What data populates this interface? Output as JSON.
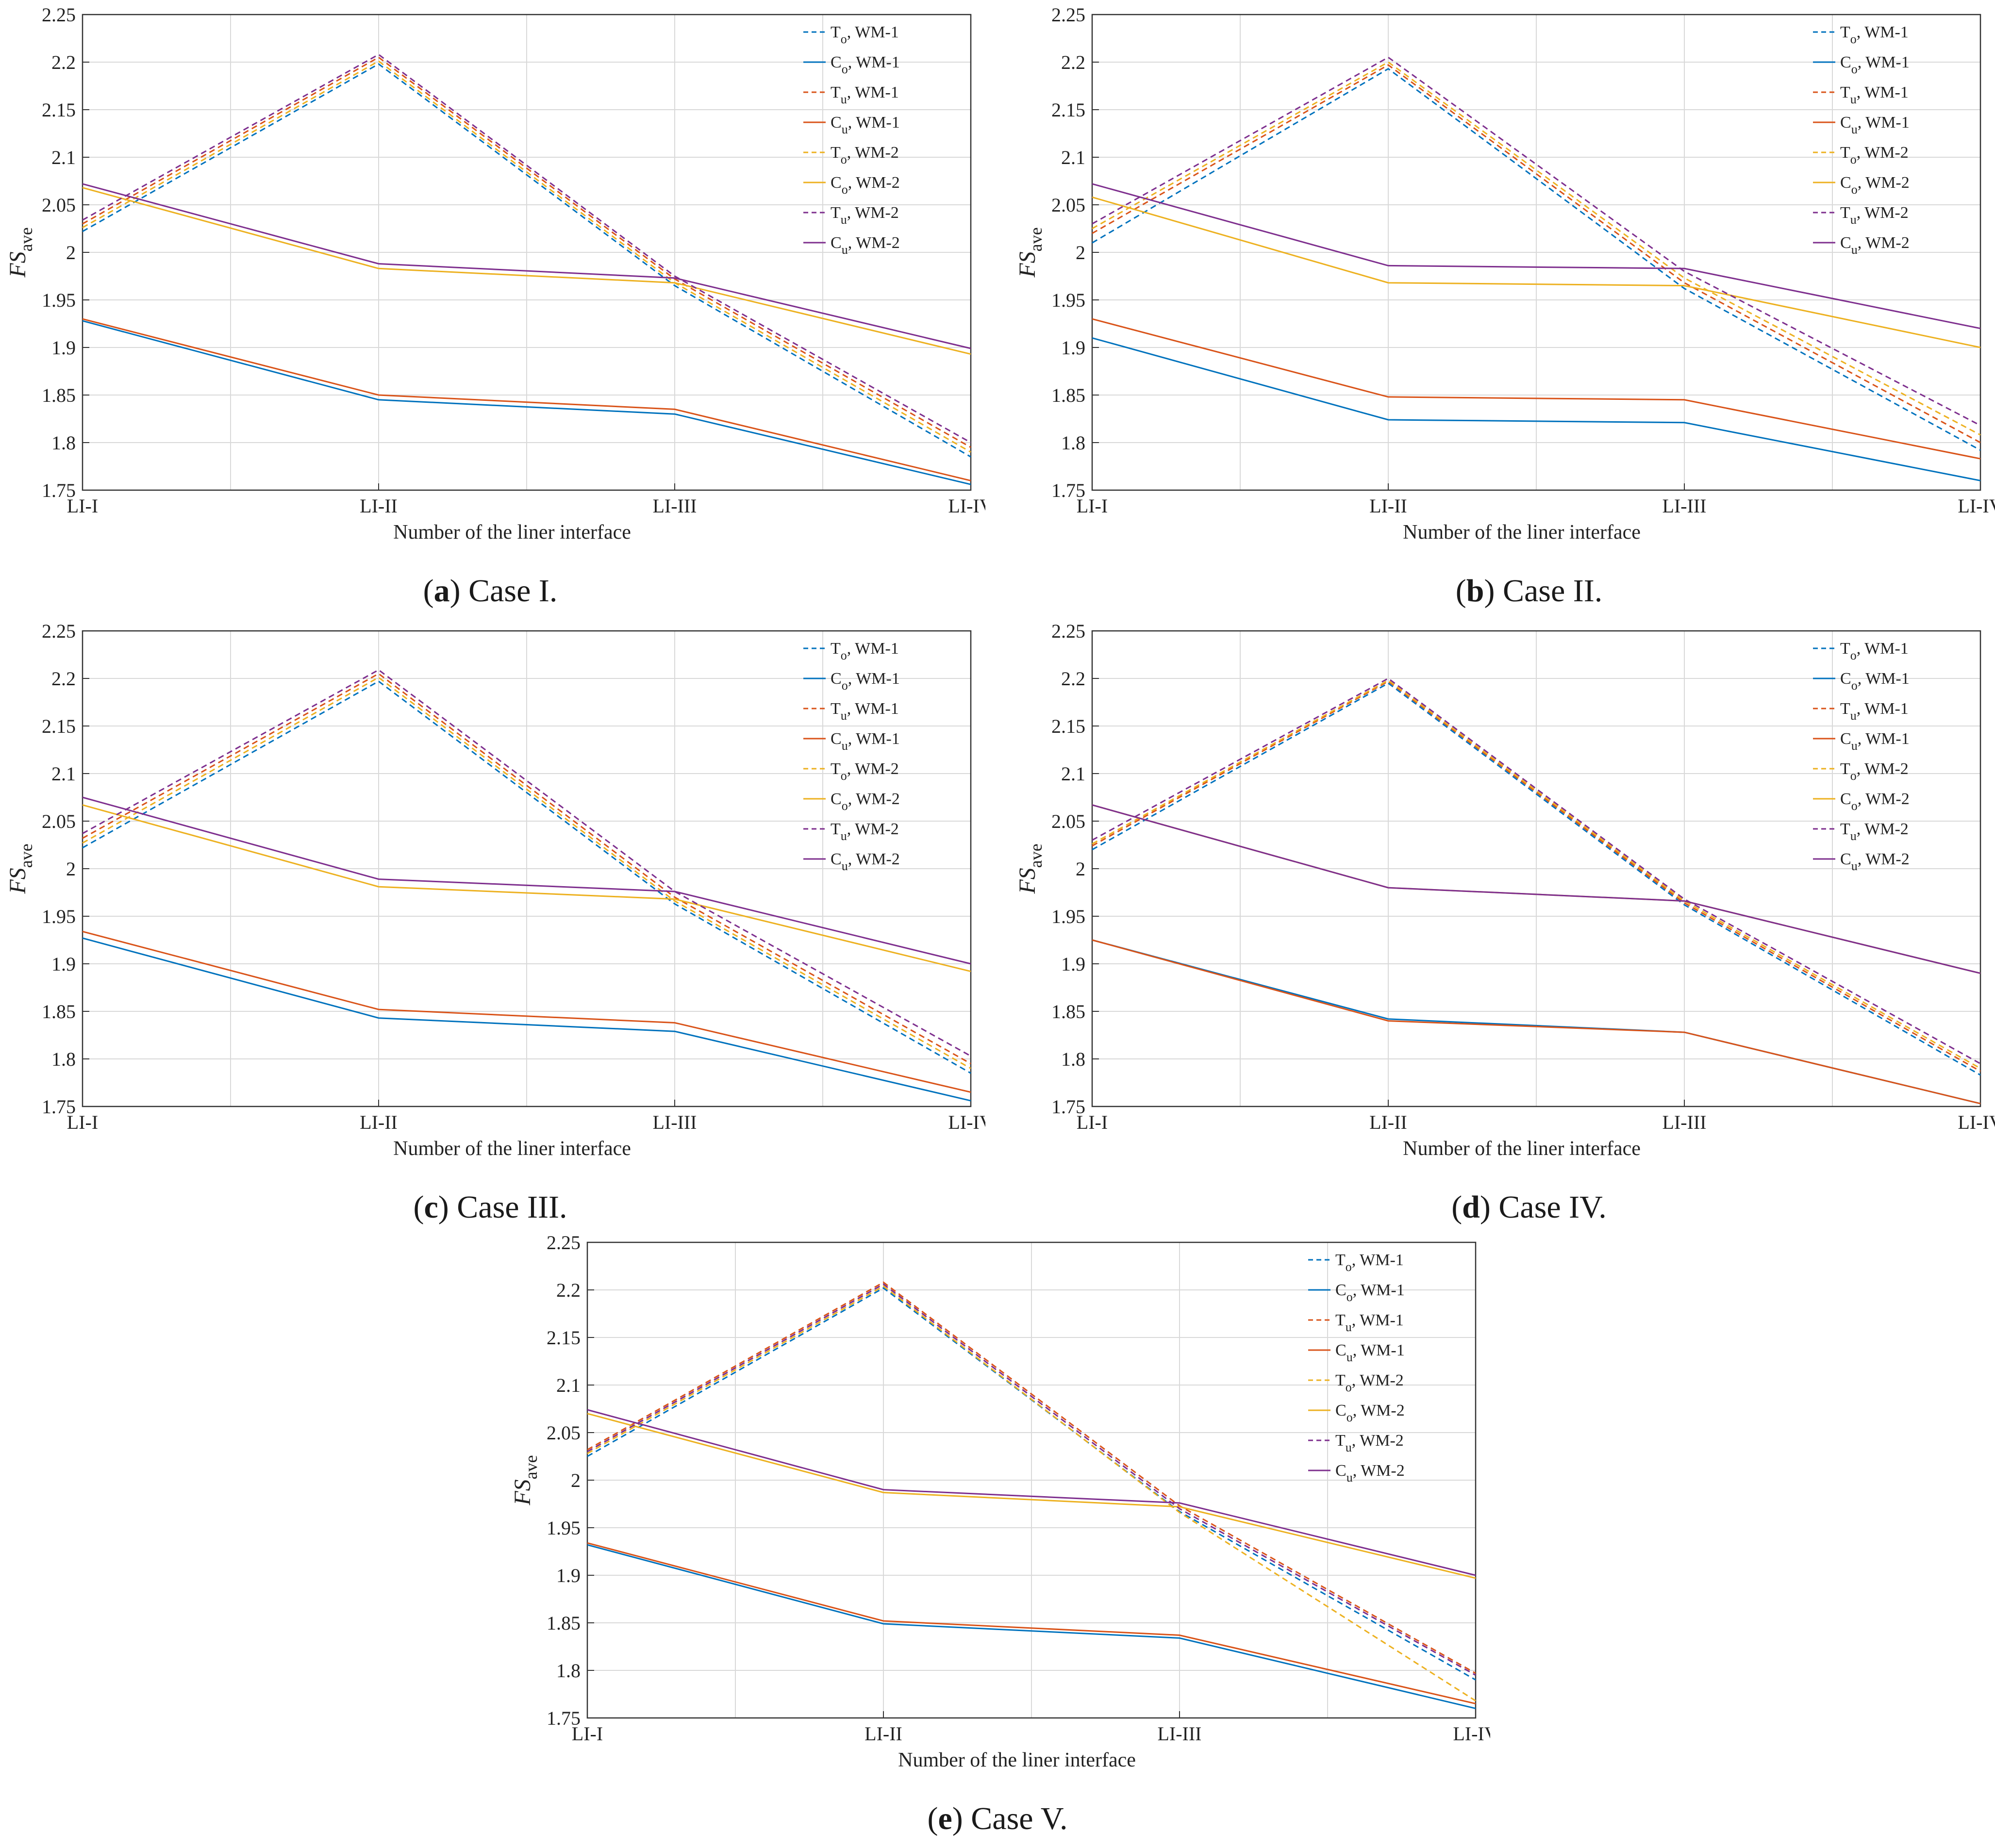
{
  "figure": {
    "captions": [
      {
        "letter": "a",
        "text": "Case I."
      },
      {
        "letter": "b",
        "text": "Case II."
      },
      {
        "letter": "c",
        "text": "Case III."
      },
      {
        "letter": "d",
        "text": "Case IV."
      },
      {
        "letter": "e",
        "text": "Case V."
      }
    ]
  },
  "colors": {
    "wm1_o": "#0072BD",
    "wm1_u": "#D95319",
    "wm2_o": "#EDB120",
    "wm2_u": "#7E2F8E",
    "grid": "#d9d9d9",
    "axis": "#333333"
  },
  "chart_data": [
    {
      "type": "line",
      "panel": "a",
      "title": "Case I.",
      "xlabel": "Number of the liner interface",
      "ylabel": "FSave",
      "ylabel_main": "FS",
      "ylabel_sub": "ave",
      "categories": [
        "LI-I",
        "LI-II",
        "LI-III",
        "LI-IV"
      ],
      "ylim": [
        1.75,
        2.25
      ],
      "yticks": [
        "1.75",
        "1.8",
        "1.85",
        "1.9",
        "1.95",
        "2",
        "2.05",
        "2.1",
        "2.15",
        "2.2",
        "2.25"
      ],
      "grid": true,
      "legend_position": "top-right",
      "series": [
        {
          "name": "To, WM-1",
          "label_main": "T",
          "label_sub": "o",
          "label_rest": ", WM-1",
          "color": "#0072BD",
          "dashed": true,
          "values": [
            2.022,
            2.198,
            1.965,
            1.785
          ]
        },
        {
          "name": "Co, WM-1",
          "label_main": "C",
          "label_sub": "o",
          "label_rest": ", WM-1",
          "color": "#0072BD",
          "dashed": false,
          "values": [
            1.928,
            1.845,
            1.83,
            1.756
          ]
        },
        {
          "name": "Tu, WM-1",
          "label_main": "T",
          "label_sub": "u",
          "label_rest": ", WM-1",
          "color": "#D95319",
          "dashed": true,
          "values": [
            2.03,
            2.205,
            1.972,
            1.795
          ]
        },
        {
          "name": "Cu, WM-1",
          "label_main": "C",
          "label_sub": "u",
          "label_rest": ", WM-1",
          "color": "#D95319",
          "dashed": false,
          "values": [
            1.93,
            1.85,
            1.835,
            1.76
          ]
        },
        {
          "name": "To, WM-2",
          "label_main": "T",
          "label_sub": "o",
          "label_rest": ", WM-2",
          "color": "#EDB120",
          "dashed": true,
          "values": [
            2.026,
            2.201,
            1.968,
            1.79
          ]
        },
        {
          "name": "Co, WM-2",
          "label_main": "C",
          "label_sub": "o",
          "label_rest": ", WM-2",
          "color": "#EDB120",
          "dashed": false,
          "values": [
            2.068,
            1.983,
            1.968,
            1.893
          ]
        },
        {
          "name": "Tu, WM-2",
          "label_main": "T",
          "label_sub": "u",
          "label_rest": ", WM-2",
          "color": "#7E2F8E",
          "dashed": true,
          "values": [
            2.034,
            2.208,
            1.975,
            1.8
          ]
        },
        {
          "name": "Cu, WM-2",
          "label_main": "C",
          "label_sub": "u",
          "label_rest": ", WM-2",
          "color": "#7E2F8E",
          "dashed": false,
          "values": [
            2.072,
            1.988,
            1.973,
            1.899
          ]
        }
      ]
    },
    {
      "type": "line",
      "panel": "b",
      "title": "Case II.",
      "xlabel": "Number of the liner interface",
      "ylabel": "FSave",
      "ylabel_main": "FS",
      "ylabel_sub": "ave",
      "categories": [
        "LI-I",
        "LI-II",
        "LI-III",
        "LI-IV"
      ],
      "ylim": [
        1.75,
        2.25
      ],
      "yticks": [
        "1.75",
        "1.8",
        "1.85",
        "1.9",
        "1.95",
        "2",
        "2.05",
        "2.1",
        "2.15",
        "2.2",
        "2.25"
      ],
      "grid": true,
      "legend_position": "top-right",
      "series": [
        {
          "name": "To, WM-1",
          "label_main": "T",
          "label_sub": "o",
          "label_rest": ", WM-1",
          "color": "#0072BD",
          "dashed": true,
          "values": [
            2.01,
            2.193,
            1.962,
            1.792
          ]
        },
        {
          "name": "Co, WM-1",
          "label_main": "C",
          "label_sub": "o",
          "label_rest": ", WM-1",
          "color": "#0072BD",
          "dashed": false,
          "values": [
            1.91,
            1.824,
            1.821,
            1.76
          ]
        },
        {
          "name": "Tu, WM-1",
          "label_main": "T",
          "label_sub": "u",
          "label_rest": ", WM-1",
          "color": "#D95319",
          "dashed": true,
          "values": [
            2.02,
            2.197,
            1.968,
            1.8
          ]
        },
        {
          "name": "Cu, WM-1",
          "label_main": "C",
          "label_sub": "u",
          "label_rest": ", WM-1",
          "color": "#D95319",
          "dashed": false,
          "values": [
            1.93,
            1.848,
            1.845,
            1.783
          ]
        },
        {
          "name": "To, WM-2",
          "label_main": "T",
          "label_sub": "o",
          "label_rest": ", WM-2",
          "color": "#EDB120",
          "dashed": true,
          "values": [
            2.025,
            2.2,
            1.973,
            1.808
          ]
        },
        {
          "name": "Co, WM-2",
          "label_main": "C",
          "label_sub": "o",
          "label_rest": ", WM-2",
          "color": "#EDB120",
          "dashed": false,
          "values": [
            2.058,
            1.968,
            1.965,
            1.9
          ]
        },
        {
          "name": "Tu, WM-2",
          "label_main": "T",
          "label_sub": "u",
          "label_rest": ", WM-2",
          "color": "#7E2F8E",
          "dashed": true,
          "values": [
            2.03,
            2.205,
            1.98,
            1.818
          ]
        },
        {
          "name": "Cu, WM-2",
          "label_main": "C",
          "label_sub": "u",
          "label_rest": ", WM-2",
          "color": "#7E2F8E",
          "dashed": false,
          "values": [
            2.072,
            1.986,
            1.983,
            1.92
          ]
        }
      ]
    },
    {
      "type": "line",
      "panel": "c",
      "title": "Case III.",
      "xlabel": "Number of the liner interface",
      "ylabel": "FSave",
      "ylabel_main": "FS",
      "ylabel_sub": "ave",
      "categories": [
        "LI-I",
        "LI-II",
        "LI-III",
        "LI-IV"
      ],
      "ylim": [
        1.75,
        2.25
      ],
      "yticks": [
        "1.75",
        "1.8",
        "1.85",
        "1.9",
        "1.95",
        "2",
        "2.05",
        "2.1",
        "2.15",
        "2.2",
        "2.25"
      ],
      "grid": true,
      "legend_position": "top-right",
      "series": [
        {
          "name": "To, WM-1",
          "label_main": "T",
          "label_sub": "o",
          "label_rest": ", WM-1",
          "color": "#0072BD",
          "dashed": true,
          "values": [
            2.022,
            2.197,
            1.963,
            1.785
          ]
        },
        {
          "name": "Co, WM-1",
          "label_main": "C",
          "label_sub": "o",
          "label_rest": ", WM-1",
          "color": "#0072BD",
          "dashed": false,
          "values": [
            1.927,
            1.843,
            1.829,
            1.756
          ]
        },
        {
          "name": "Tu, WM-1",
          "label_main": "T",
          "label_sub": "u",
          "label_rest": ", WM-1",
          "color": "#D95319",
          "dashed": true,
          "values": [
            2.032,
            2.205,
            1.97,
            1.795
          ]
        },
        {
          "name": "Cu, WM-1",
          "label_main": "C",
          "label_sub": "u",
          "label_rest": ", WM-1",
          "color": "#D95319",
          "dashed": false,
          "values": [
            1.934,
            1.852,
            1.838,
            1.765
          ]
        },
        {
          "name": "To, WM-2",
          "label_main": "T",
          "label_sub": "o",
          "label_rest": ", WM-2",
          "color": "#EDB120",
          "dashed": true,
          "values": [
            2.027,
            2.201,
            1.966,
            1.79
          ]
        },
        {
          "name": "Co, WM-2",
          "label_main": "C",
          "label_sub": "o",
          "label_rest": ", WM-2",
          "color": "#EDB120",
          "dashed": false,
          "values": [
            2.067,
            1.981,
            1.968,
            1.892
          ]
        },
        {
          "name": "Tu, WM-2",
          "label_main": "T",
          "label_sub": "u",
          "label_rest": ", WM-2",
          "color": "#7E2F8E",
          "dashed": true,
          "values": [
            2.037,
            2.209,
            1.976,
            1.803
          ]
        },
        {
          "name": "Cu, WM-2",
          "label_main": "C",
          "label_sub": "u",
          "label_rest": ", WM-2",
          "color": "#7E2F8E",
          "dashed": false,
          "values": [
            2.075,
            1.989,
            1.976,
            1.9
          ]
        }
      ]
    },
    {
      "type": "line",
      "panel": "d",
      "title": "Case IV.",
      "xlabel": "Number of the liner interface",
      "ylabel": "FSave",
      "ylabel_main": "FS",
      "ylabel_sub": "ave",
      "categories": [
        "LI-I",
        "LI-II",
        "LI-III",
        "LI-IV"
      ],
      "ylim": [
        1.75,
        2.25
      ],
      "yticks": [
        "1.75",
        "1.8",
        "1.85",
        "1.9",
        "1.95",
        "2",
        "2.05",
        "2.1",
        "2.15",
        "2.2",
        "2.25"
      ],
      "grid": true,
      "legend_position": "top-right",
      "series": [
        {
          "name": "To, WM-1",
          "label_main": "T",
          "label_sub": "o",
          "label_rest": ", WM-1",
          "color": "#0072BD",
          "dashed": true,
          "values": [
            2.02,
            2.195,
            1.962,
            1.783
          ]
        },
        {
          "name": "Co, WM-1",
          "label_main": "C",
          "label_sub": "o",
          "label_rest": ", WM-1",
          "color": "#0072BD",
          "dashed": false,
          "values": [
            1.925,
            1.842,
            1.828,
            1.753
          ]
        },
        {
          "name": "Tu, WM-1",
          "label_main": "T",
          "label_sub": "u",
          "label_rest": ", WM-1",
          "color": "#D95319",
          "dashed": true,
          "values": [
            2.024,
            2.197,
            1.964,
            1.787
          ]
        },
        {
          "name": "Cu, WM-1",
          "label_main": "C",
          "label_sub": "u",
          "label_rest": ", WM-1",
          "color": "#D95319",
          "dashed": false,
          "values": [
            1.925,
            1.84,
            1.828,
            1.753
          ]
        },
        {
          "name": "To, WM-2",
          "label_main": "T",
          "label_sub": "o",
          "label_rest": ", WM-2",
          "color": "#EDB120",
          "dashed": true,
          "values": [
            2.026,
            2.198,
            1.966,
            1.79
          ]
        },
        {
          "name": "Co, WM-2",
          "label_main": "C",
          "label_sub": "o",
          "label_rest": ", WM-2",
          "color": "#EDB120",
          "dashed": false,
          "values": [
            2.067,
            1.98,
            1.966,
            1.89
          ]
        },
        {
          "name": "Tu, WM-2",
          "label_main": "T",
          "label_sub": "u",
          "label_rest": ", WM-2",
          "color": "#7E2F8E",
          "dashed": true,
          "values": [
            2.03,
            2.2,
            1.968,
            1.795
          ]
        },
        {
          "name": "Cu, WM-2",
          "label_main": "C",
          "label_sub": "u",
          "label_rest": ", WM-2",
          "color": "#7E2F8E",
          "dashed": false,
          "values": [
            2.067,
            1.98,
            1.966,
            1.89
          ]
        }
      ]
    },
    {
      "type": "line",
      "panel": "e",
      "title": "Case V.",
      "xlabel": "Number of the liner interface",
      "ylabel": "FSave",
      "ylabel_main": "FS",
      "ylabel_sub": "ave",
      "categories": [
        "LI-I",
        "LI-II",
        "LI-III",
        "LI-IV"
      ],
      "ylim": [
        1.75,
        2.25
      ],
      "yticks": [
        "1.75",
        "1.8",
        "1.85",
        "1.9",
        "1.95",
        "2",
        "2.05",
        "2.1",
        "2.15",
        "2.2",
        "2.25"
      ],
      "grid": true,
      "legend_position": "top-right",
      "series": [
        {
          "name": "To, WM-1",
          "label_main": "T",
          "label_sub": "o",
          "label_rest": ", WM-1",
          "color": "#0072BD",
          "dashed": true,
          "values": [
            2.025,
            2.202,
            1.967,
            1.79
          ]
        },
        {
          "name": "Co, WM-1",
          "label_main": "C",
          "label_sub": "o",
          "label_rest": ", WM-1",
          "color": "#0072BD",
          "dashed": false,
          "values": [
            1.932,
            1.849,
            1.834,
            1.76
          ]
        },
        {
          "name": "Tu, WM-1",
          "label_main": "T",
          "label_sub": "u",
          "label_rest": ", WM-1",
          "color": "#D95319",
          "dashed": true,
          "values": [
            2.032,
            2.208,
            1.973,
            1.797
          ]
        },
        {
          "name": "Cu, WM-1",
          "label_main": "C",
          "label_sub": "u",
          "label_rest": ", WM-1",
          "color": "#D95319",
          "dashed": false,
          "values": [
            1.934,
            1.852,
            1.837,
            1.765
          ]
        },
        {
          "name": "To, WM-2",
          "label_main": "T",
          "label_sub": "o",
          "label_rest": ", WM-2",
          "color": "#EDB120",
          "dashed": true,
          "values": [
            2.028,
            2.204,
            1.966,
            1.768
          ]
        },
        {
          "name": "Co, WM-2",
          "label_main": "C",
          "label_sub": "o",
          "label_rest": ", WM-2",
          "color": "#EDB120",
          "dashed": false,
          "values": [
            2.07,
            1.987,
            1.972,
            1.897
          ]
        },
        {
          "name": "Tu, WM-2",
          "label_main": "T",
          "label_sub": "u",
          "label_rest": ", WM-2",
          "color": "#7E2F8E",
          "dashed": true,
          "values": [
            2.03,
            2.206,
            1.97,
            1.795
          ]
        },
        {
          "name": "Cu, WM-2",
          "label_main": "C",
          "label_sub": "u",
          "label_rest": ", WM-2",
          "color": "#7E2F8E",
          "dashed": false,
          "values": [
            2.074,
            1.99,
            1.976,
            1.9
          ]
        }
      ]
    }
  ]
}
